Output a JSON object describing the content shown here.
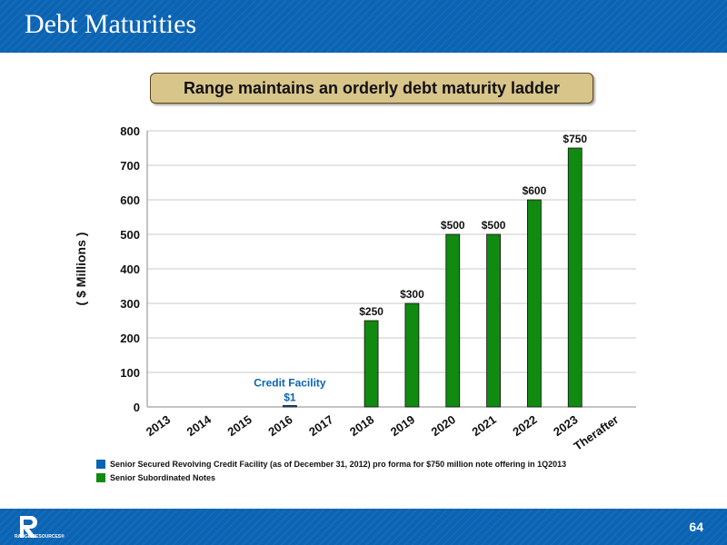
{
  "header": {
    "title": "Debt Maturities"
  },
  "subtitle": "Range maintains an orderly debt maturity ladder",
  "chart_data": {
    "type": "bar",
    "categories": [
      "2013",
      "2014",
      "2015",
      "2016",
      "2017",
      "2018",
      "2019",
      "2020",
      "2021",
      "2022",
      "2023",
      "Therafter"
    ],
    "series": [
      {
        "name": "Senior Secured Revolving Credit Facility (as of December 31, 2012) pro forma for $750 million note offering in 1Q2013",
        "color": "#0a63b3",
        "values": [
          0,
          0,
          0,
          1,
          0,
          0,
          0,
          0,
          0,
          0,
          0,
          0
        ]
      },
      {
        "name": "Senior Subordinated Notes",
        "color": "#108a10",
        "values": [
          0,
          0,
          0,
          0,
          0,
          250,
          300,
          500,
          500,
          600,
          750,
          0
        ]
      }
    ],
    "data_labels": [
      "",
      "",
      "",
      "$1",
      "",
      "$250",
      "$300",
      "$500",
      "$500",
      "$600",
      "$750",
      ""
    ],
    "annotation": "Credit Facility",
    "ylabel": "( $ Millions )",
    "ylim": [
      0,
      800
    ],
    "yticks": [
      0,
      100,
      200,
      300,
      400,
      500,
      600,
      700,
      800
    ],
    "grid": true,
    "legend_position": "bottom-left"
  },
  "legend": [
    {
      "label": "Senior Secured Revolving Credit Facility (as of December 31, 2012) pro forma for $750 million note offering in 1Q2013",
      "color": "#0a63b3"
    },
    {
      "label": "Senior Subordinated Notes",
      "color": "#108a10"
    }
  ],
  "footer": {
    "logo_text": "RANGE RESOURCES®",
    "page_number": "64"
  }
}
